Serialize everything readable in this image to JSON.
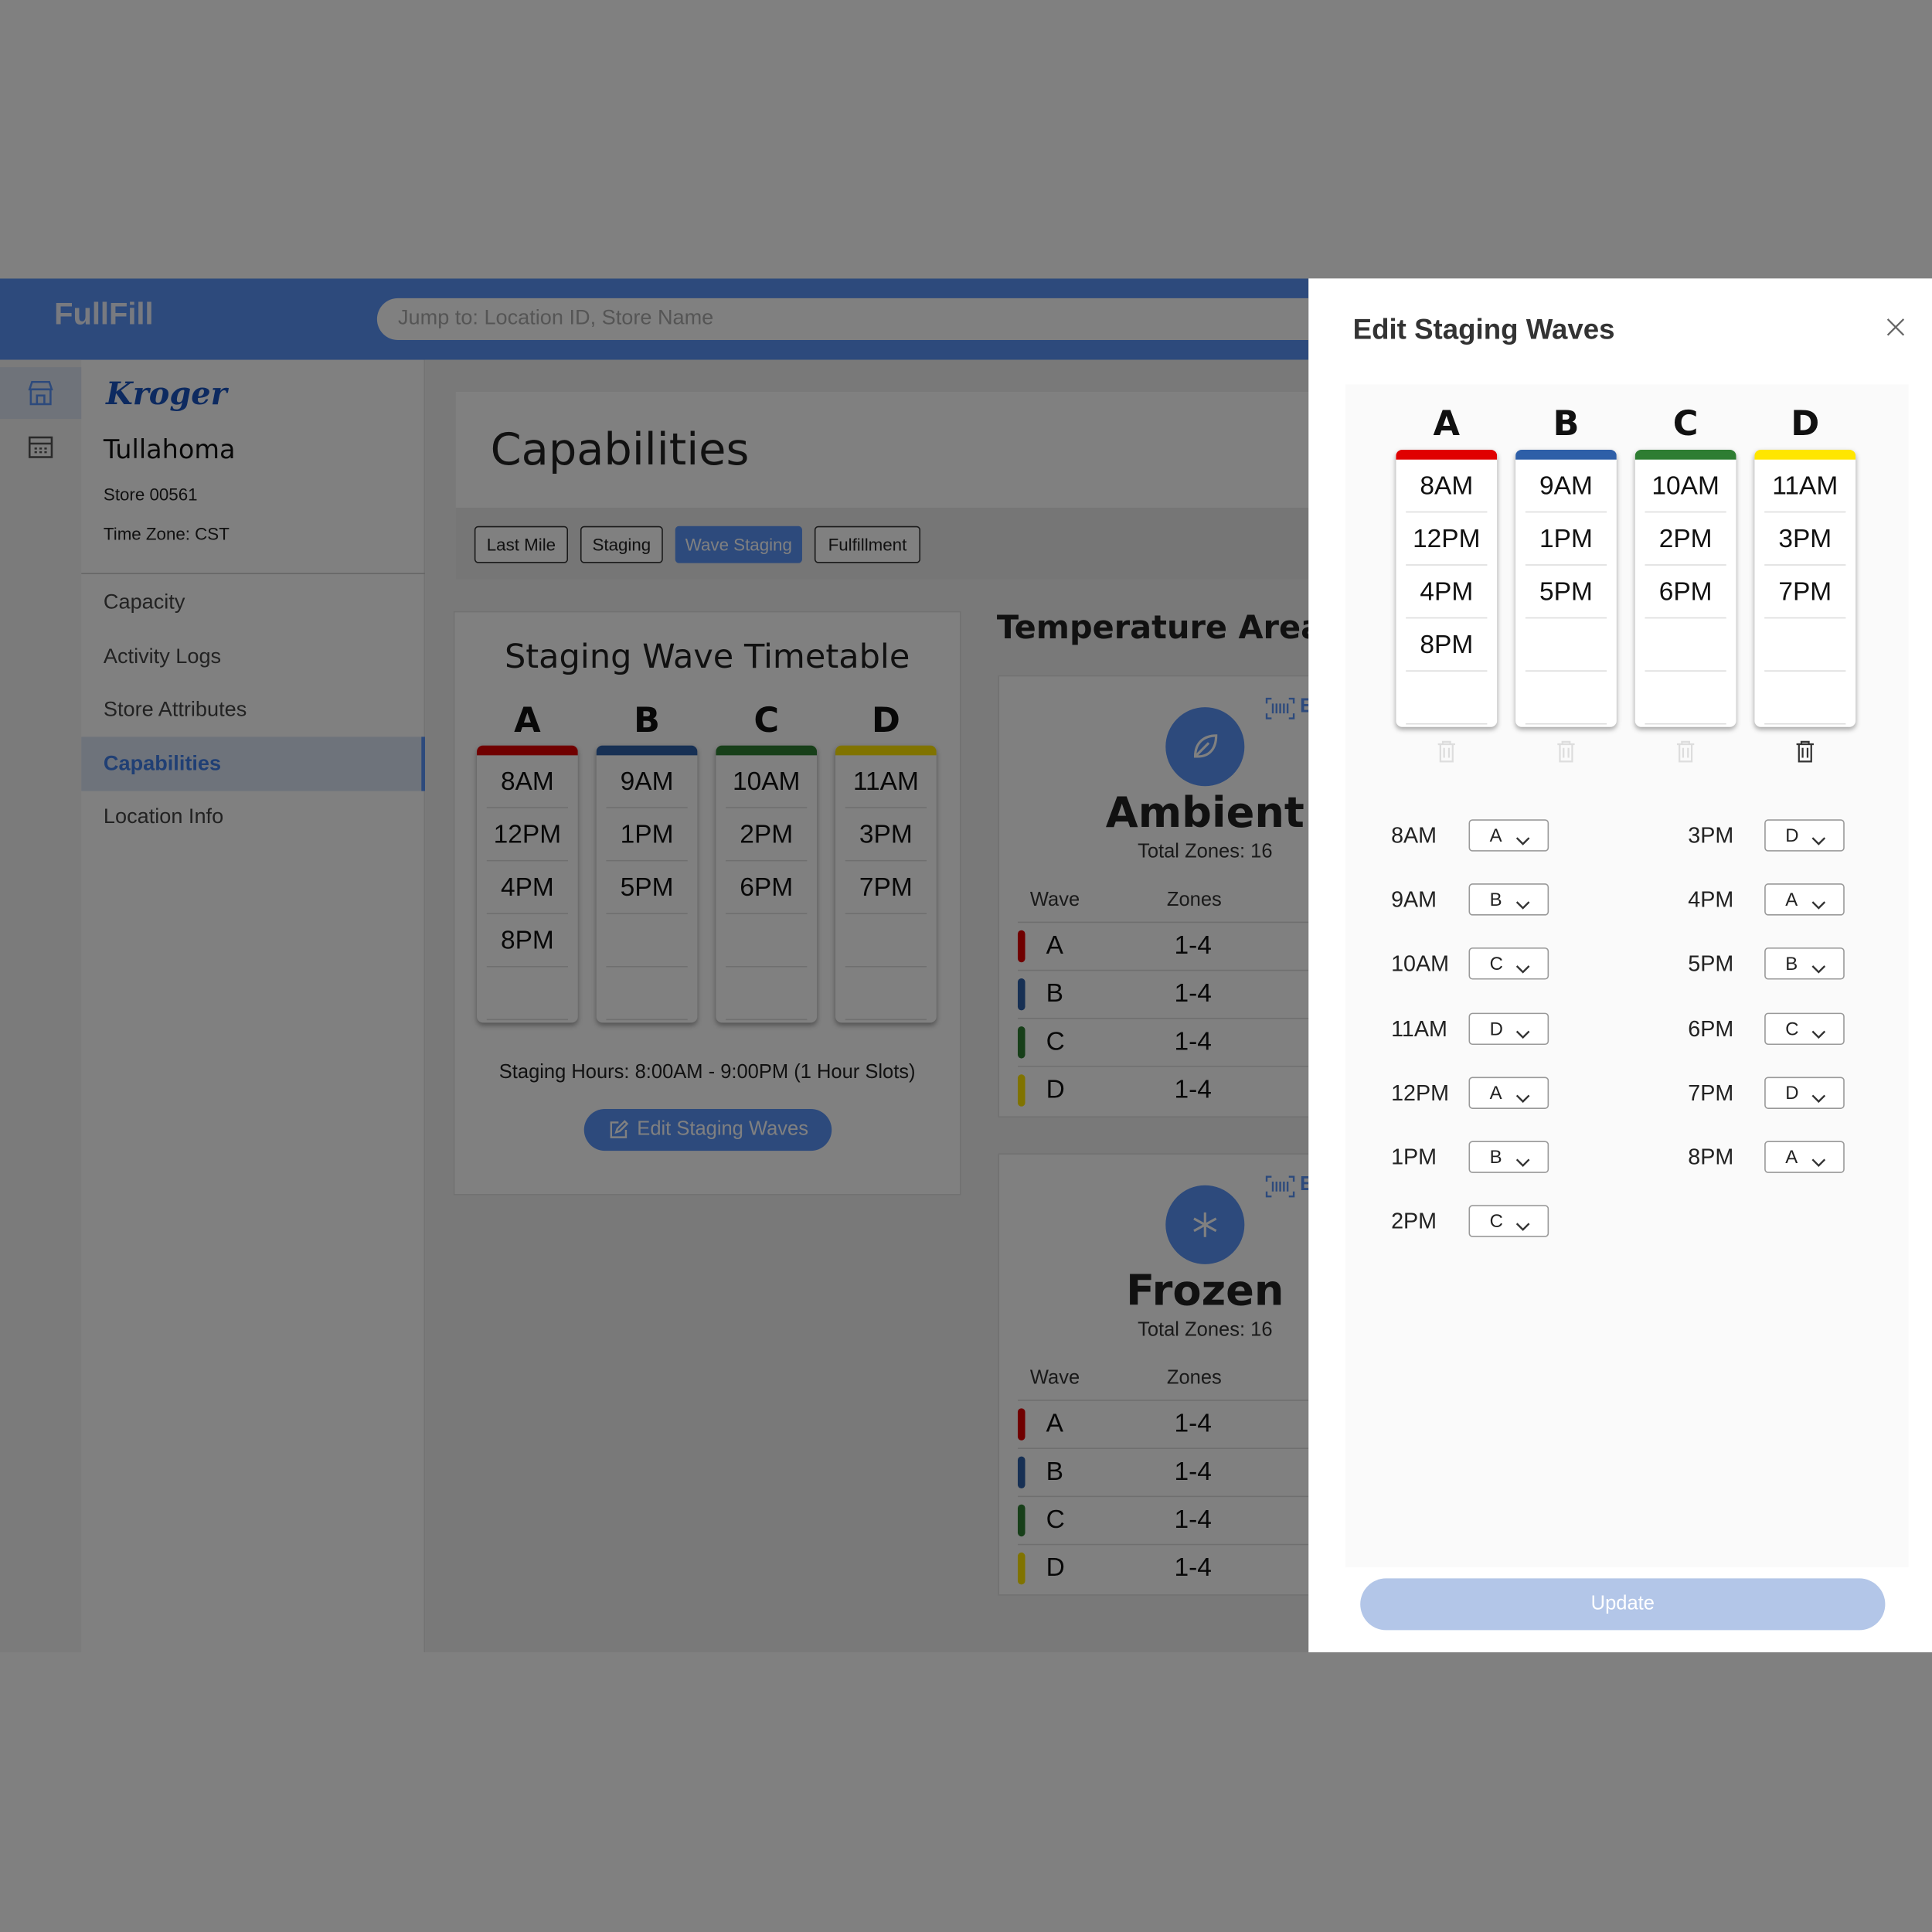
{
  "header": {
    "brand": "FullFill",
    "search_placeholder": "Jump to: Location ID, Store Name"
  },
  "sidebar": {
    "logo": "Kroger",
    "store_name": "Tullahoma",
    "store_number": "Store 00561",
    "time_zone": "Time Zone: CST",
    "nav": [
      "Capacity",
      "Activity Logs",
      "Store Attributes",
      "Capabilities",
      "Location Info"
    ],
    "active_nav": 3
  },
  "page": {
    "title": "Capabilities",
    "tabs": [
      "Last Mile",
      "Staging",
      "Wave Staging",
      "Fulfillment"
    ],
    "active_tab": 2
  },
  "timetable": {
    "title": "Staging Wave Timetable",
    "waves": [
      {
        "name": "A",
        "color": "#e00000",
        "times": [
          "8AM",
          "12PM",
          "4PM",
          "8PM"
        ]
      },
      {
        "name": "B",
        "color": "#2e5fa8",
        "times": [
          "9AM",
          "1PM",
          "5PM"
        ]
      },
      {
        "name": "C",
        "color": "#2e7d32",
        "times": [
          "10AM",
          "2PM",
          "6PM"
        ]
      },
      {
        "name": "D",
        "color": "#ffe600",
        "times": [
          "11AM",
          "3PM",
          "7PM"
        ]
      }
    ],
    "hours": "Staging Hours: 8:00AM - 9:00PM (1 Hour Slots)",
    "button": "Edit Staging Waves"
  },
  "temperature": {
    "title": "Temperature Areas",
    "edit_link": "E",
    "areas": [
      {
        "name": "Ambient",
        "total": "Total Zones: 16",
        "headers": [
          "Wave",
          "Zones"
        ],
        "rows": [
          {
            "wave": "A",
            "zones": "1-4"
          },
          {
            "wave": "B",
            "zones": "1-4"
          },
          {
            "wave": "C",
            "zones": "1-4"
          },
          {
            "wave": "D",
            "zones": "1-4"
          }
        ]
      },
      {
        "name": "Frozen",
        "total": "Total Zones: 16",
        "headers": [
          "Wave",
          "Zones"
        ],
        "rows": [
          {
            "wave": "A",
            "zones": "1-4"
          },
          {
            "wave": "B",
            "zones": "1-4"
          },
          {
            "wave": "C",
            "zones": "1-4"
          },
          {
            "wave": "D",
            "zones": "1-4"
          }
        ]
      }
    ]
  },
  "drawer": {
    "title": "Edit Staging Waves",
    "button": "Update",
    "assignments": [
      {
        "time": "8AM",
        "wave": "A"
      },
      {
        "time": "9AM",
        "wave": "B"
      },
      {
        "time": "10AM",
        "wave": "C"
      },
      {
        "time": "11AM",
        "wave": "D"
      },
      {
        "time": "12PM",
        "wave": "A"
      },
      {
        "time": "1PM",
        "wave": "B"
      },
      {
        "time": "2PM",
        "wave": "C"
      },
      {
        "time": "3PM",
        "wave": "D"
      },
      {
        "time": "4PM",
        "wave": "A"
      },
      {
        "time": "5PM",
        "wave": "B"
      },
      {
        "time": "6PM",
        "wave": "C"
      },
      {
        "time": "7PM",
        "wave": "D"
      },
      {
        "time": "8PM",
        "wave": "A"
      }
    ]
  }
}
